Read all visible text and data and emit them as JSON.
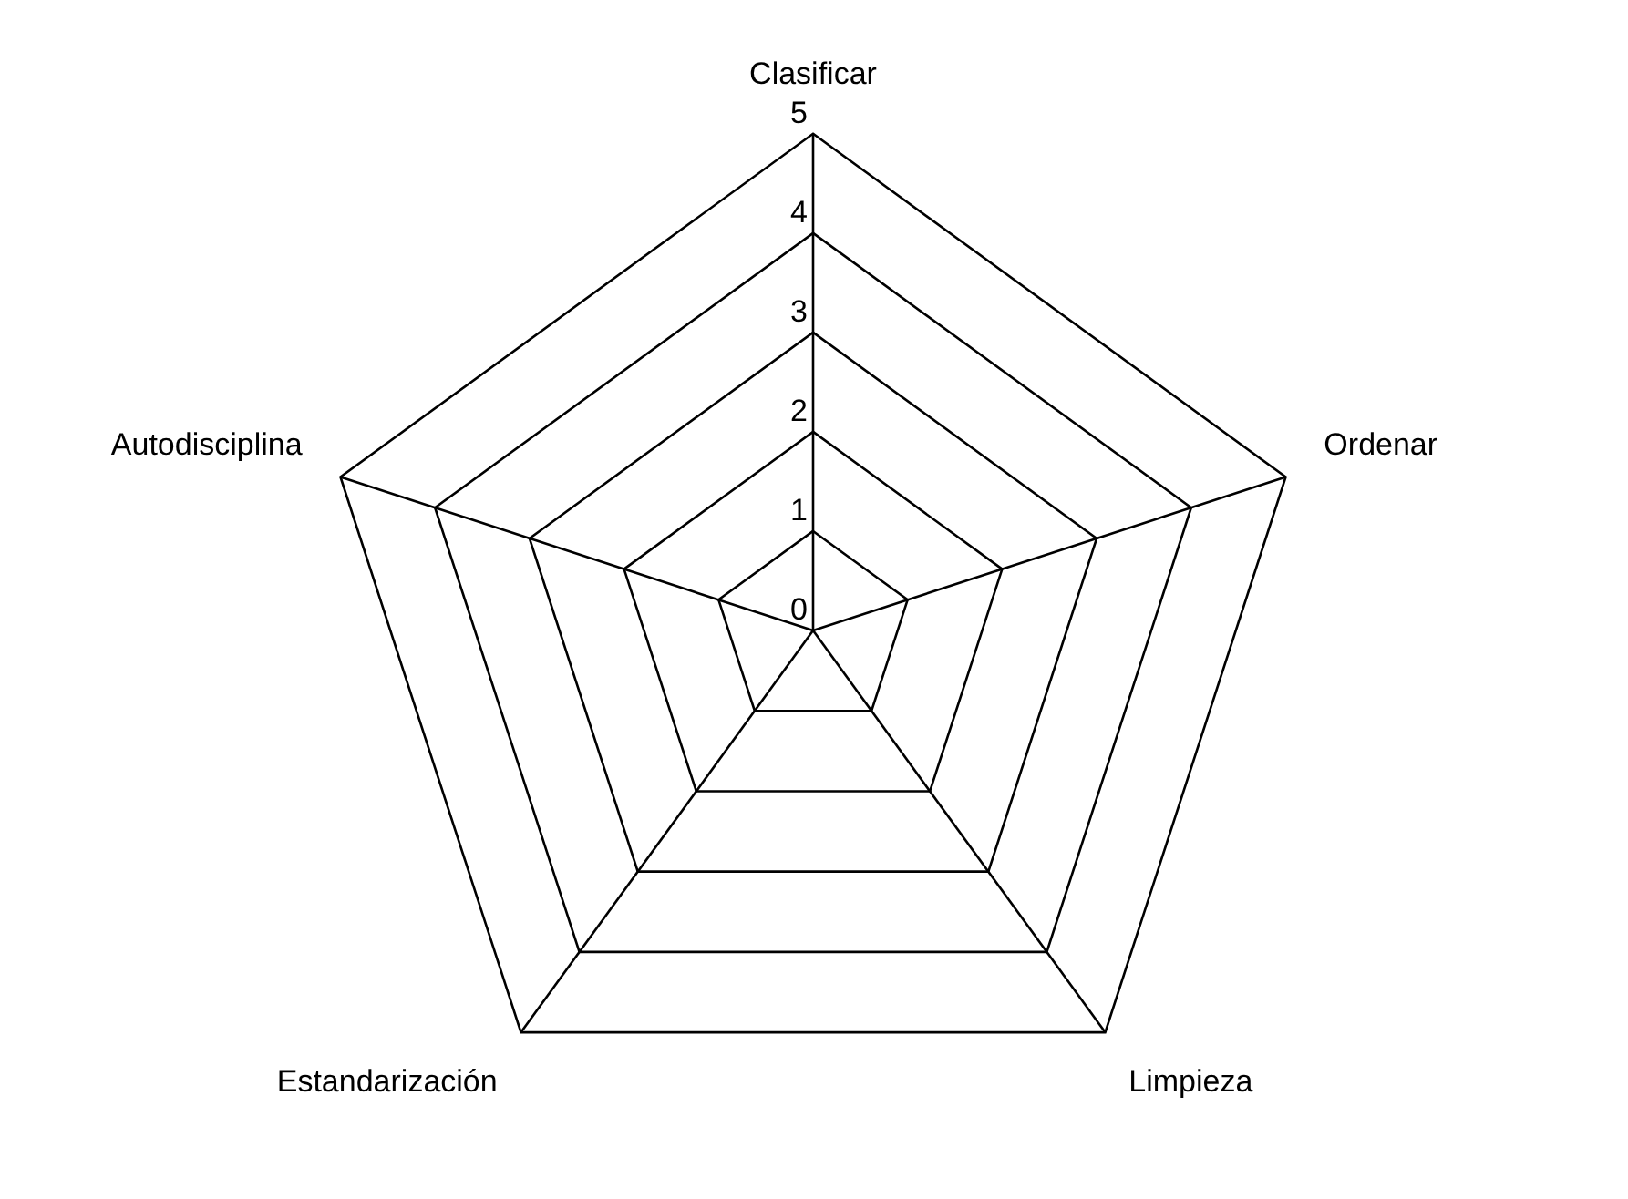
{
  "chart_data": {
    "type": "radar",
    "categories": [
      "Clasificar",
      "Ordenar",
      "Limpieza",
      "Estandarización",
      "Autodisciplina"
    ],
    "ylim": [
      0,
      5
    ],
    "yticks": [
      0,
      1,
      2,
      3,
      4,
      5
    ],
    "grid": true,
    "legend": false
  }
}
